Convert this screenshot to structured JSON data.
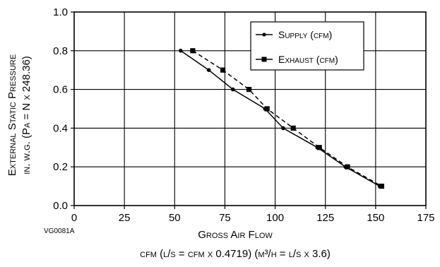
{
  "chart_data": {
    "type": "line",
    "xlabel": "Gross Air Flow",
    "xlabel_units": "cfm (l/s = cfm x 0.4719) (m³/h = l/s x 3.6)",
    "ylabel_line1": "External Static Pressure",
    "ylabel_line2": "in. w.g. (Pa = N x 248.36)",
    "figure_code": "VG0081A",
    "xlim": [
      0,
      175
    ],
    "ylim": [
      0,
      1.0
    ],
    "x_ticks": [
      0,
      25,
      50,
      75,
      100,
      125,
      150,
      175
    ],
    "y_ticks": [
      0.0,
      0.2,
      0.4,
      0.6,
      0.8,
      1.0
    ],
    "x_tick_labels": [
      "0",
      "25",
      "50",
      "75",
      "100",
      "125",
      "150",
      "175"
    ],
    "y_tick_labels": [
      "0.0",
      "0.2",
      "0.4",
      "0.6",
      "0.8",
      "1.0"
    ],
    "grid": true,
    "legend_position": "top-right",
    "series": [
      {
        "name": "Supply (cfm)",
        "line_style": "solid",
        "marker": "circle",
        "x": [
          53,
          67,
          79,
          95,
          104,
          121,
          135,
          152
        ],
        "y": [
          0.8,
          0.7,
          0.6,
          0.5,
          0.4,
          0.3,
          0.2,
          0.1
        ]
      },
      {
        "name": "Exhaust (cfm)",
        "line_style": "dashed",
        "marker": "square",
        "x": [
          59,
          74,
          87,
          96,
          109,
          122,
          136,
          153
        ],
        "y": [
          0.8,
          0.7,
          0.6,
          0.5,
          0.4,
          0.3,
          0.2,
          0.1
        ]
      }
    ]
  }
}
